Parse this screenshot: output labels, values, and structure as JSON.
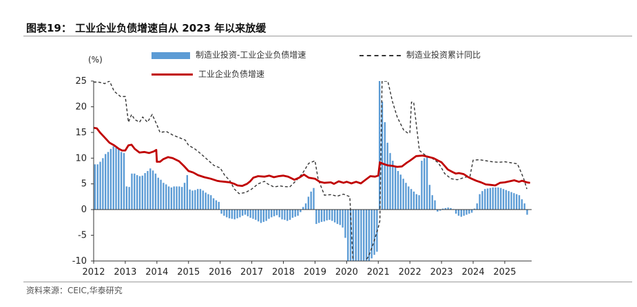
{
  "figure": {
    "title": "图表19：  工业企业负债增速自从 2023 年以来放缓",
    "source": "资料来源：CEIC,华泰研究"
  },
  "chart_data": {
    "type": "bar",
    "unit": "(%)",
    "ylim": [
      -10,
      25
    ],
    "yticks": [
      25,
      20,
      15,
      10,
      5,
      0,
      -5,
      -10
    ],
    "xlim": [
      2012.0,
      2025.85
    ],
    "xticks": [
      "2012",
      "2013",
      "2014",
      "2015",
      "2016",
      "2017",
      "2018",
      "2019",
      "2020",
      "2021",
      "2022",
      "2023",
      "2024",
      "2025"
    ],
    "grid": false,
    "legend": "top",
    "series": [
      {
        "name": "制造业投资-工业企业负债增速",
        "kind": "bar",
        "color": "#5b9bd5",
        "start": "2012-01",
        "values": [
          8.8,
          8.8,
          9.3,
          10.0,
          10.8,
          11.2,
          11.8,
          12.3,
          12.0,
          11.8,
          11.2,
          11.0,
          4.5,
          4.4,
          7.0,
          7.0,
          6.7,
          6.5,
          6.6,
          7.1,
          7.5,
          8.0,
          7.6,
          7.0,
          6.2,
          5.8,
          5.2,
          4.9,
          4.5,
          4.3,
          4.5,
          4.5,
          4.5,
          4.4,
          5.2,
          6.7,
          3.9,
          3.7,
          3.8,
          4.0,
          4.0,
          3.7,
          3.3,
          3.0,
          2.8,
          2.2,
          1.8,
          1.5,
          -0.8,
          -1.2,
          -1.5,
          -1.7,
          -1.8,
          -1.9,
          -1.7,
          -1.5,
          -1.2,
          -1.0,
          -1.3,
          -1.6,
          -1.8,
          -2.0,
          -2.3,
          -2.6,
          -2.4,
          -2.2,
          -1.8,
          -1.5,
          -1.3,
          -1.1,
          -1.5,
          -1.9,
          -2.0,
          -2.2,
          -2.0,
          -1.6,
          -1.4,
          -1.2,
          -0.5,
          0.5,
          1.2,
          2.5,
          3.5,
          4.2,
          -2.8,
          -2.6,
          -2.4,
          -2.3,
          -2.1,
          -2.0,
          -2.2,
          -2.5,
          -2.8,
          -3.0,
          -3.5,
          -5.5,
          -10.0,
          -10.0,
          -10.0,
          -10.0,
          -10.0,
          -10.0,
          -10.0,
          -10.0,
          -10.0,
          -9.5,
          -8.8,
          -8.2,
          25.0,
          21.0,
          17.0,
          13.0,
          11.0,
          9.5,
          8.5,
          7.5,
          6.8,
          6.0,
          5.2,
          4.5,
          4.0,
          3.5,
          3.0,
          2.8,
          9.5,
          10.0,
          10.4,
          4.8,
          2.8,
          1.8,
          -0.4,
          -0.2,
          0.2,
          0.3,
          0.4,
          0.3,
          0.1,
          -0.8,
          -1.2,
          -1.4,
          -1.2,
          -1.0,
          -0.8,
          -0.6,
          0.2,
          1.2,
          3.0,
          3.6,
          4.0,
          4.1,
          4.2,
          4.3,
          4.3,
          4.3,
          4.2,
          4.0,
          3.8,
          3.6,
          3.4,
          3.2,
          3.0,
          2.8,
          2.0,
          1.2,
          -1.0
        ]
      },
      {
        "name": "制造业投资累计同比",
        "kind": "line-dashed",
        "color": "#333333",
        "points": [
          [
            2012.0,
            24.8
          ],
          [
            2012.15,
            24.8
          ],
          [
            2012.35,
            24.5
          ],
          [
            2012.5,
            25.0
          ],
          [
            2012.65,
            23.0
          ],
          [
            2012.85,
            22.0
          ],
          [
            2013.0,
            22.0
          ],
          [
            2013.1,
            17.0
          ],
          [
            2013.2,
            18.5
          ],
          [
            2013.3,
            17.5
          ],
          [
            2013.45,
            17.0
          ],
          [
            2013.55,
            18.0
          ],
          [
            2013.7,
            17.0
          ],
          [
            2013.85,
            18.5
          ],
          [
            2014.0,
            16.5
          ],
          [
            2014.1,
            15.0
          ],
          [
            2014.3,
            15.2
          ],
          [
            2014.5,
            14.5
          ],
          [
            2014.7,
            14.0
          ],
          [
            2014.9,
            13.5
          ],
          [
            2015.0,
            12.5
          ],
          [
            2015.2,
            11.8
          ],
          [
            2015.4,
            10.8
          ],
          [
            2015.6,
            9.7
          ],
          [
            2015.8,
            8.6
          ],
          [
            2016.0,
            8.1
          ],
          [
            2016.15,
            6.6
          ],
          [
            2016.3,
            5.7
          ],
          [
            2016.45,
            4.0
          ],
          [
            2016.6,
            3.1
          ],
          [
            2016.8,
            3.3
          ],
          [
            2017.0,
            4.0
          ],
          [
            2017.2,
            5.0
          ],
          [
            2017.4,
            5.5
          ],
          [
            2017.5,
            5.0
          ],
          [
            2017.7,
            4.4
          ],
          [
            2017.9,
            4.6
          ],
          [
            2018.0,
            4.5
          ],
          [
            2018.2,
            4.4
          ],
          [
            2018.4,
            5.6
          ],
          [
            2018.6,
            7.0
          ],
          [
            2018.8,
            9.0
          ],
          [
            2019.0,
            9.5
          ],
          [
            2019.1,
            5.9
          ],
          [
            2019.3,
            2.8
          ],
          [
            2019.5,
            2.9
          ],
          [
            2019.7,
            2.6
          ],
          [
            2019.9,
            3.0
          ],
          [
            2020.1,
            2.5
          ],
          [
            2020.2,
            -10.0
          ],
          [
            2020.5,
            -11.0
          ],
          [
            2020.7,
            -9.0
          ],
          [
            2020.85,
            -6.5
          ],
          [
            2021.0,
            -3.5
          ],
          [
            2021.05,
            -2.2
          ],
          [
            2021.12,
            25.0
          ],
          [
            2021.3,
            25.0
          ],
          [
            2021.45,
            21.0
          ],
          [
            2021.6,
            18.0
          ],
          [
            2021.8,
            15.5
          ],
          [
            2021.95,
            14.8
          ],
          [
            2022.0,
            15.0
          ],
          [
            2022.05,
            20.9
          ],
          [
            2022.12,
            20.9
          ],
          [
            2022.3,
            11.5
          ],
          [
            2022.5,
            10.5
          ],
          [
            2022.7,
            10.0
          ],
          [
            2022.9,
            9.1
          ],
          [
            2023.0,
            8.1
          ],
          [
            2023.1,
            7.0
          ],
          [
            2023.3,
            6.0
          ],
          [
            2023.5,
            5.8
          ],
          [
            2023.7,
            6.2
          ],
          [
            2023.9,
            6.5
          ],
          [
            2024.0,
            9.6
          ],
          [
            2024.2,
            9.7
          ],
          [
            2024.4,
            9.5
          ],
          [
            2024.6,
            9.3
          ],
          [
            2024.8,
            9.2
          ],
          [
            2025.0,
            9.3
          ],
          [
            2025.2,
            9.1
          ],
          [
            2025.4,
            8.9
          ],
          [
            2025.5,
            7.5
          ],
          [
            2025.6,
            6.0
          ],
          [
            2025.7,
            4.0
          ]
        ]
      },
      {
        "name": "工业企业负债增速",
        "kind": "line",
        "color": "#c00000",
        "points": [
          [
            2012.0,
            15.9
          ],
          [
            2012.1,
            15.8
          ],
          [
            2012.2,
            15.0
          ],
          [
            2012.35,
            14.0
          ],
          [
            2012.5,
            13.0
          ],
          [
            2012.65,
            12.5
          ],
          [
            2012.8,
            11.8
          ],
          [
            2012.9,
            11.5
          ],
          [
            2013.0,
            11.5
          ],
          [
            2013.1,
            12.5
          ],
          [
            2013.2,
            12.6
          ],
          [
            2013.3,
            11.8
          ],
          [
            2013.45,
            11.1
          ],
          [
            2013.6,
            11.2
          ],
          [
            2013.75,
            11.0
          ],
          [
            2013.9,
            11.3
          ],
          [
            2013.98,
            11.6
          ],
          [
            2014.0,
            9.3
          ],
          [
            2014.1,
            9.3
          ],
          [
            2014.2,
            9.8
          ],
          [
            2014.35,
            10.2
          ],
          [
            2014.5,
            10.0
          ],
          [
            2014.7,
            9.4
          ],
          [
            2014.85,
            8.5
          ],
          [
            2015.0,
            7.5
          ],
          [
            2015.15,
            7.2
          ],
          [
            2015.3,
            6.7
          ],
          [
            2015.5,
            6.3
          ],
          [
            2015.7,
            6.0
          ],
          [
            2015.9,
            5.6
          ],
          [
            2016.0,
            5.5
          ],
          [
            2016.15,
            5.4
          ],
          [
            2016.3,
            5.3
          ],
          [
            2016.45,
            5.0
          ],
          [
            2016.55,
            4.7
          ],
          [
            2016.7,
            4.6
          ],
          [
            2016.85,
            5.0
          ],
          [
            2016.95,
            5.5
          ],
          [
            2017.05,
            6.2
          ],
          [
            2017.2,
            6.5
          ],
          [
            2017.4,
            6.4
          ],
          [
            2017.55,
            6.6
          ],
          [
            2017.7,
            6.3
          ],
          [
            2017.85,
            6.5
          ],
          [
            2018.0,
            6.6
          ],
          [
            2018.15,
            6.4
          ],
          [
            2018.35,
            5.8
          ],
          [
            2018.5,
            6.2
          ],
          [
            2018.65,
            6.8
          ],
          [
            2018.8,
            6.2
          ],
          [
            2019.0,
            6.0
          ],
          [
            2019.15,
            5.4
          ],
          [
            2019.3,
            5.2
          ],
          [
            2019.5,
            5.3
          ],
          [
            2019.6,
            5.0
          ],
          [
            2019.75,
            5.5
          ],
          [
            2019.9,
            5.2
          ],
          [
            2020.0,
            5.4
          ],
          [
            2020.15,
            5.1
          ],
          [
            2020.3,
            5.4
          ],
          [
            2020.45,
            5.1
          ],
          [
            2020.6,
            5.8
          ],
          [
            2020.75,
            6.5
          ],
          [
            2020.9,
            6.4
          ],
          [
            2021.0,
            6.6
          ],
          [
            2021.05,
            9.2
          ],
          [
            2021.15,
            8.9
          ],
          [
            2021.3,
            8.6
          ],
          [
            2021.45,
            8.5
          ],
          [
            2021.6,
            8.3
          ],
          [
            2021.75,
            8.4
          ],
          [
            2021.9,
            9.1
          ],
          [
            2022.0,
            9.5
          ],
          [
            2022.2,
            10.4
          ],
          [
            2022.4,
            10.5
          ],
          [
            2022.55,
            10.3
          ],
          [
            2022.75,
            10.0
          ],
          [
            2022.9,
            9.5
          ],
          [
            2023.0,
            9.2
          ],
          [
            2023.1,
            8.5
          ],
          [
            2023.2,
            7.8
          ],
          [
            2023.35,
            7.3
          ],
          [
            2023.45,
            7.0
          ],
          [
            2023.55,
            7.1
          ],
          [
            2023.7,
            6.9
          ],
          [
            2023.85,
            6.3
          ],
          [
            2023.95,
            6.0
          ],
          [
            2024.1,
            5.6
          ],
          [
            2024.25,
            5.3
          ],
          [
            2024.4,
            4.9
          ],
          [
            2024.55,
            4.8
          ],
          [
            2024.7,
            4.7
          ],
          [
            2024.85,
            5.2
          ],
          [
            2025.0,
            5.3
          ],
          [
            2025.15,
            5.5
          ],
          [
            2025.3,
            5.7
          ],
          [
            2025.45,
            5.4
          ],
          [
            2025.55,
            5.6
          ],
          [
            2025.7,
            5.3
          ],
          [
            2025.8,
            5.2
          ]
        ]
      }
    ]
  }
}
